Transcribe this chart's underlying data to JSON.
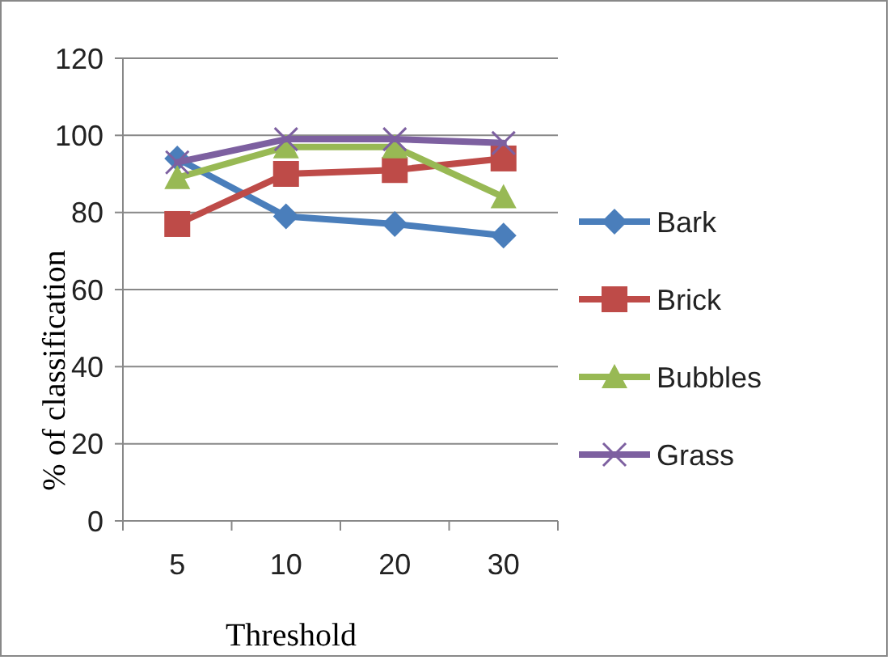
{
  "chart_data": {
    "type": "line",
    "xlabel": "Threshold",
    "ylabel": "% of classification",
    "categories": [
      "5",
      "10",
      "20",
      "30"
    ],
    "ylim": [
      0,
      120
    ],
    "yticks": [
      0,
      20,
      40,
      60,
      80,
      100,
      120
    ],
    "grid": "y",
    "legend": "right",
    "series": [
      {
        "name": "Bark",
        "color": "#4a7ebb",
        "marker": "diamond",
        "values": [
          94,
          79,
          77,
          74
        ]
      },
      {
        "name": "Brick",
        "color": "#be4b48",
        "marker": "square",
        "values": [
          77,
          90,
          91,
          94
        ]
      },
      {
        "name": "Bubbles",
        "color": "#98b954",
        "marker": "triangle",
        "values": [
          89,
          97,
          97,
          84
        ]
      },
      {
        "name": "Grass",
        "color": "#7d60a0",
        "marker": "cross",
        "values": [
          93,
          99,
          99,
          98
        ]
      }
    ]
  }
}
